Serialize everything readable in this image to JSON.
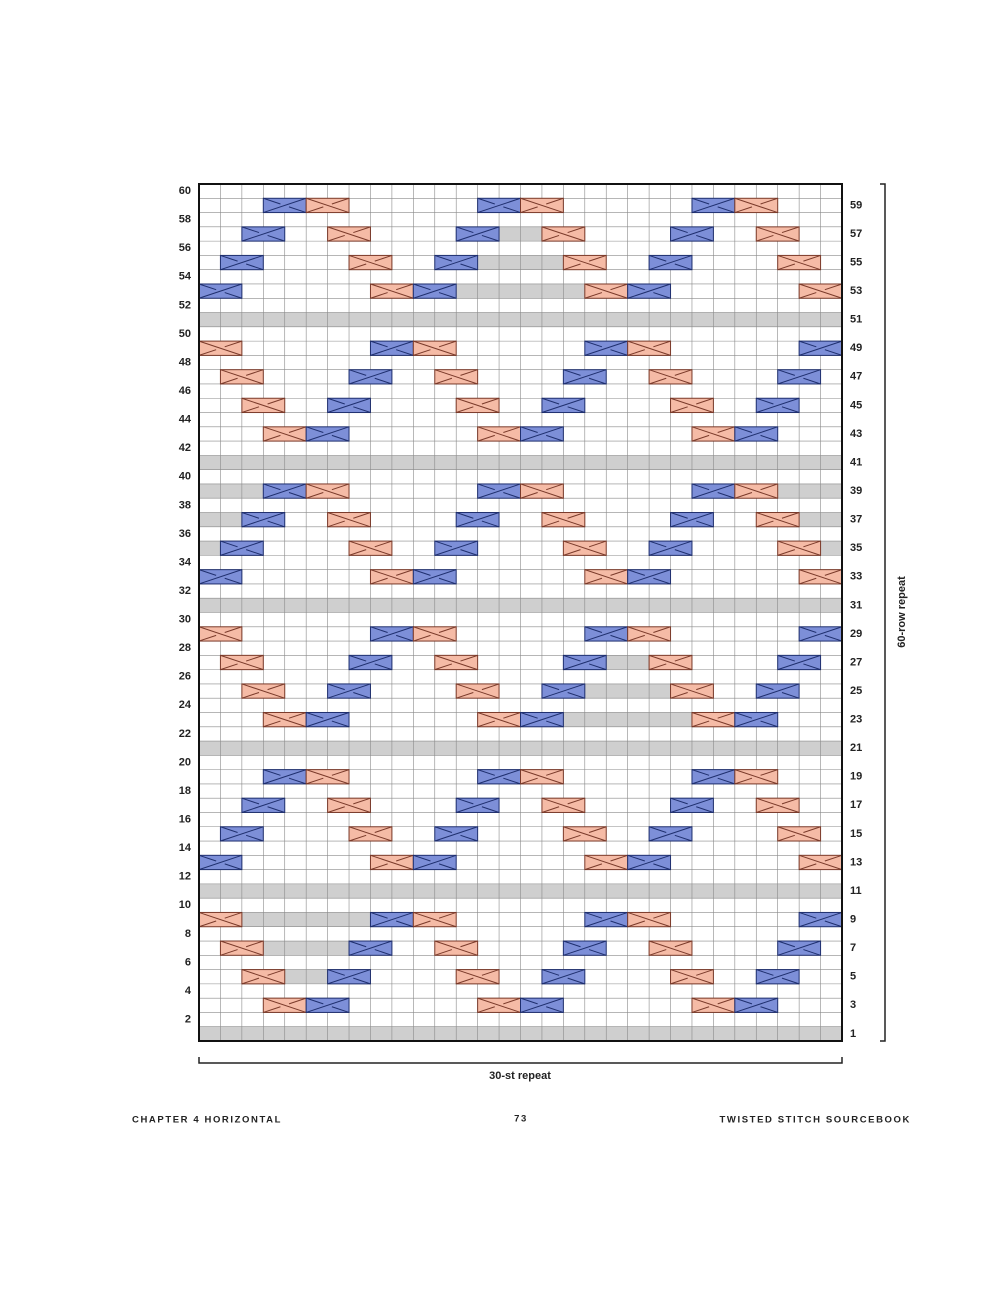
{
  "row_labels_left": [
    60,
    58,
    56,
    54,
    52,
    50,
    48,
    46,
    44,
    42,
    40,
    38,
    36,
    34,
    32,
    30,
    28,
    26,
    24,
    22,
    20,
    18,
    16,
    14,
    12,
    10,
    8,
    6,
    4,
    2
  ],
  "row_labels_right": [
    59,
    57,
    55,
    53,
    51,
    49,
    47,
    45,
    43,
    41,
    39,
    37,
    35,
    33,
    31,
    29,
    27,
    25,
    23,
    21,
    19,
    17,
    15,
    13,
    11,
    9,
    7,
    5,
    3,
    1
  ],
  "row_repeat": "60-row repeat",
  "stitch_repeat": "30-st repeat",
  "footer": {
    "left": "CHAPTER 4  HORIZONTAL",
    "page": "73",
    "right": "TWISTED STITCH SOURCEBOOK"
  }
}
